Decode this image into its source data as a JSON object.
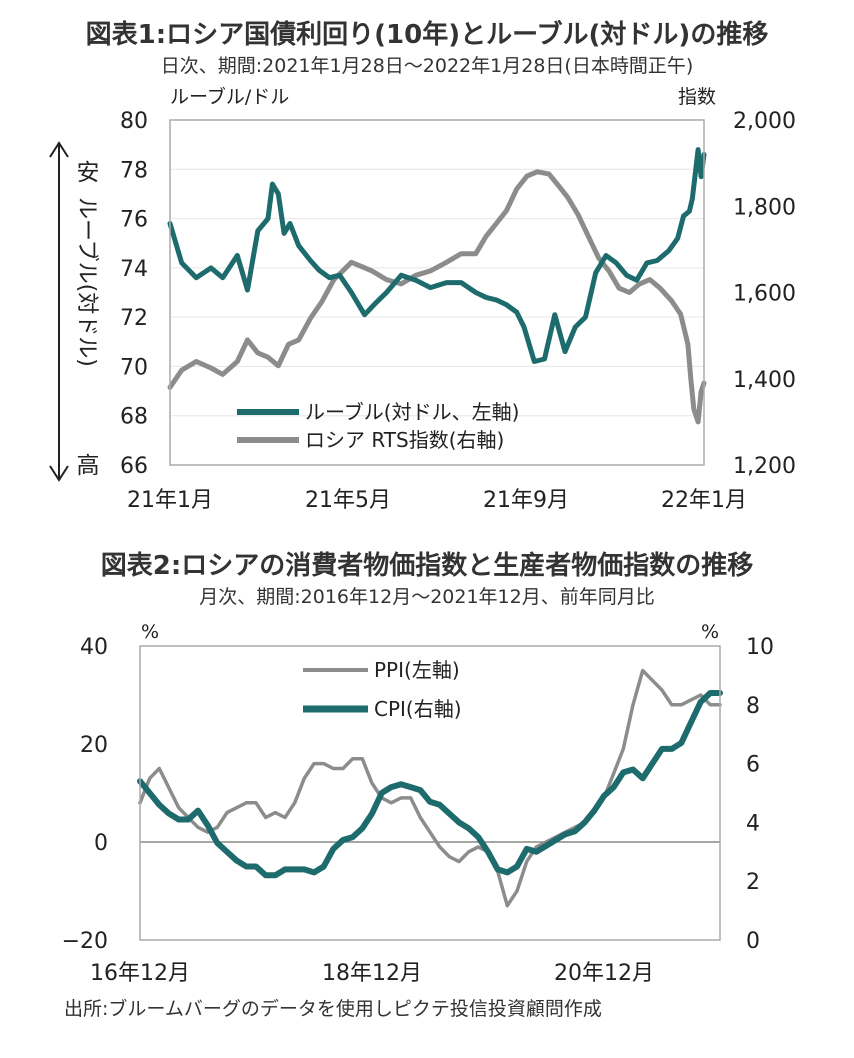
{
  "chart1": {
    "title": "図表1:ロシア国債利回り(10年)とルーブル(対ドル)の推移",
    "subtitle": "日次、期間:2021年1月28日〜2022年1月28日(日本時間正午)",
    "left_unit": "ルーブル/ドル",
    "right_unit": "指数",
    "arrow_top": "安",
    "arrow_mid": "ルーブル(対ドル)",
    "arrow_bottom": "高",
    "x_ticks": [
      "21年1月",
      "21年5月",
      "21年9月",
      "22年1月"
    ],
    "legend": [
      "ルーブル(対ドル、左軸)",
      "ロシア RTS指数(右軸)"
    ]
  },
  "chart2": {
    "title": "図表2:ロシアの消費者物価指数と生産者物価指数の推移",
    "subtitle": "月次、期間:2016年12月〜2021年12月、前年同月比",
    "left_unit": "%",
    "right_unit": "%",
    "x_ticks": [
      "16年12月",
      "18年12月",
      "20年12月"
    ],
    "legend": [
      "PPI(左軸)",
      "CPI(右軸)"
    ]
  },
  "source": "出所:ブルームバーグのデータを使用しピクテ投信投資顧問作成",
  "colors": {
    "teal": "#1e6b6e",
    "gray": "#8c8c8c",
    "frame": "#aaaaaa",
    "zero": "#888888"
  },
  "chart_data": [
    {
      "type": "line",
      "title": "図表1:ロシア国債利回り(10年)とルーブル(対ドル)の推移",
      "x_range": [
        "2021-01-28",
        "2022-01-28"
      ],
      "x_ticks": [
        "21年1月",
        "21年5月",
        "21年9月",
        "22年1月"
      ],
      "ylabel": "ルーブル/ドル",
      "y2label": "指数",
      "ylim": [
        66,
        80
      ],
      "y2lim": [
        1200,
        2000
      ],
      "yticks": [
        66,
        68,
        70,
        72,
        74,
        76,
        78,
        80
      ],
      "y2ticks": [
        "1,200",
        "1,400",
        "1,600",
        "1,800",
        "2,000"
      ],
      "series": [
        {
          "name": "ルーブル(対ドル、左軸)",
          "axis": "left",
          "x": [
            "2021-01-28",
            "2021-02-05",
            "2021-02-15",
            "2021-02-25",
            "2021-03-05",
            "2021-03-15",
            "2021-03-22",
            "2021-03-29",
            "2021-04-05",
            "2021-04-08",
            "2021-04-12",
            "2021-04-16",
            "2021-04-20",
            "2021-04-26",
            "2021-05-04",
            "2021-05-10",
            "2021-05-17",
            "2021-05-24",
            "2021-06-01",
            "2021-06-10",
            "2021-06-18",
            "2021-06-25",
            "2021-07-05",
            "2021-07-15",
            "2021-07-25",
            "2021-08-05",
            "2021-08-15",
            "2021-08-25",
            "2021-09-01",
            "2021-09-08",
            "2021-09-15",
            "2021-09-22",
            "2021-09-27",
            "2021-10-04",
            "2021-10-11",
            "2021-10-18",
            "2021-10-25",
            "2021-11-01",
            "2021-11-08",
            "2021-11-15",
            "2021-11-22",
            "2021-11-29",
            "2021-12-06",
            "2021-12-13",
            "2021-12-20",
            "2021-12-27",
            "2022-01-04",
            "2022-01-10",
            "2022-01-14",
            "2022-01-18",
            "2022-01-20",
            "2022-01-24",
            "2022-01-26",
            "2022-01-28"
          ],
          "values": [
            75.8,
            74.2,
            73.6,
            74.0,
            73.6,
            74.5,
            73.1,
            75.5,
            76.0,
            77.4,
            77.0,
            75.4,
            75.8,
            74.9,
            74.3,
            73.9,
            73.6,
            73.7,
            73.0,
            72.1,
            72.6,
            73.0,
            73.7,
            73.5,
            73.2,
            73.4,
            73.4,
            73.0,
            72.8,
            72.7,
            72.5,
            72.2,
            71.6,
            70.2,
            70.3,
            72.1,
            70.6,
            71.6,
            72.0,
            73.8,
            74.5,
            74.2,
            73.7,
            73.5,
            74.2,
            74.3,
            74.7,
            75.2,
            76.1,
            76.3,
            76.8,
            78.8,
            77.7,
            78.6
          ]
        },
        {
          "name": "ロシア RTS指数(右軸)",
          "axis": "right",
          "x": [
            "2021-01-28",
            "2021-02-05",
            "2021-02-15",
            "2021-02-25",
            "2021-03-05",
            "2021-03-15",
            "2021-03-22",
            "2021-03-29",
            "2021-04-05",
            "2021-04-12",
            "2021-04-19",
            "2021-04-26",
            "2021-05-04",
            "2021-05-12",
            "2021-05-20",
            "2021-06-01",
            "2021-06-08",
            "2021-06-15",
            "2021-06-25",
            "2021-07-05",
            "2021-07-15",
            "2021-07-25",
            "2021-08-05",
            "2021-08-15",
            "2021-08-25",
            "2021-09-01",
            "2021-09-08",
            "2021-09-15",
            "2021-09-22",
            "2021-09-29",
            "2021-10-06",
            "2021-10-14",
            "2021-10-20",
            "2021-10-27",
            "2021-11-03",
            "2021-11-10",
            "2021-11-17",
            "2021-11-24",
            "2021-12-01",
            "2021-12-08",
            "2021-12-15",
            "2021-12-22",
            "2021-12-29",
            "2022-01-06",
            "2022-01-12",
            "2022-01-17",
            "2022-01-19",
            "2022-01-21",
            "2022-01-24",
            "2022-01-26",
            "2022-01-28"
          ],
          "values": [
            1380,
            1420,
            1440,
            1425,
            1410,
            1440,
            1490,
            1460,
            1450,
            1430,
            1480,
            1490,
            1540,
            1580,
            1630,
            1670,
            1660,
            1650,
            1630,
            1620,
            1640,
            1650,
            1670,
            1690,
            1690,
            1730,
            1760,
            1790,
            1840,
            1870,
            1880,
            1875,
            1850,
            1820,
            1780,
            1730,
            1680,
            1650,
            1610,
            1600,
            1620,
            1630,
            1610,
            1580,
            1550,
            1480,
            1400,
            1330,
            1300,
            1370,
            1390
          ]
        }
      ]
    },
    {
      "type": "line",
      "title": "図表2:ロシアの消費者物価指数と生産者物価指数の推移",
      "x": [
        "2016-12",
        "2017-01",
        "2017-02",
        "2017-03",
        "2017-04",
        "2017-05",
        "2017-06",
        "2017-07",
        "2017-08",
        "2017-09",
        "2017-10",
        "2017-11",
        "2017-12",
        "2018-01",
        "2018-02",
        "2018-03",
        "2018-04",
        "2018-05",
        "2018-06",
        "2018-07",
        "2018-08",
        "2018-09",
        "2018-10",
        "2018-11",
        "2018-12",
        "2019-01",
        "2019-02",
        "2019-03",
        "2019-04",
        "2019-05",
        "2019-06",
        "2019-07",
        "2019-08",
        "2019-09",
        "2019-10",
        "2019-11",
        "2019-12",
        "2020-01",
        "2020-02",
        "2020-03",
        "2020-04",
        "2020-05",
        "2020-06",
        "2020-07",
        "2020-08",
        "2020-09",
        "2020-10",
        "2020-11",
        "2020-12",
        "2021-01",
        "2021-02",
        "2021-03",
        "2021-04",
        "2021-05",
        "2021-06",
        "2021-07",
        "2021-08",
        "2021-09",
        "2021-10",
        "2021-11",
        "2021-12"
      ],
      "x_ticks": [
        "16年12月",
        "18年12月",
        "20年12月"
      ],
      "ylabel": "%",
      "y2label": "%",
      "ylim": [
        -20,
        40
      ],
      "y2lim": [
        0,
        10
      ],
      "yticks": [
        -20,
        0,
        20,
        40
      ],
      "y2ticks": [
        0,
        2,
        4,
        6,
        8,
        10
      ],
      "series": [
        {
          "name": "PPI(左軸)",
          "axis": "left",
          "values": [
            8,
            13,
            15,
            11,
            7,
            5,
            3,
            2,
            3,
            6,
            7,
            8,
            8,
            5,
            6,
            5,
            8,
            13,
            16,
            16,
            15,
            15,
            17,
            17,
            12,
            9,
            8,
            9,
            9,
            5,
            2,
            -1,
            -3,
            -4,
            -2,
            -1,
            -2,
            -6,
            -13,
            -10,
            -4,
            -1,
            0,
            1,
            2,
            3,
            4,
            6,
            9,
            14,
            19,
            28,
            35,
            33,
            31,
            28,
            28,
            29,
            30,
            28,
            28
          ]
        },
        {
          "name": "CPI(右軸)",
          "axis": "right",
          "values": [
            5.4,
            5.0,
            4.6,
            4.3,
            4.1,
            4.1,
            4.4,
            3.9,
            3.3,
            3.0,
            2.7,
            2.5,
            2.5,
            2.2,
            2.2,
            2.4,
            2.4,
            2.4,
            2.3,
            2.5,
            3.1,
            3.4,
            3.5,
            3.8,
            4.3,
            5.0,
            5.2,
            5.3,
            5.2,
            5.1,
            4.7,
            4.6,
            4.3,
            4.0,
            3.8,
            3.5,
            3.0,
            2.4,
            2.3,
            2.5,
            3.1,
            3.0,
            3.2,
            3.4,
            3.6,
            3.7,
            4.0,
            4.4,
            4.9,
            5.2,
            5.7,
            5.8,
            5.5,
            6.0,
            6.5,
            6.5,
            6.7,
            7.4,
            8.1,
            8.4,
            8.4
          ]
        }
      ]
    }
  ]
}
